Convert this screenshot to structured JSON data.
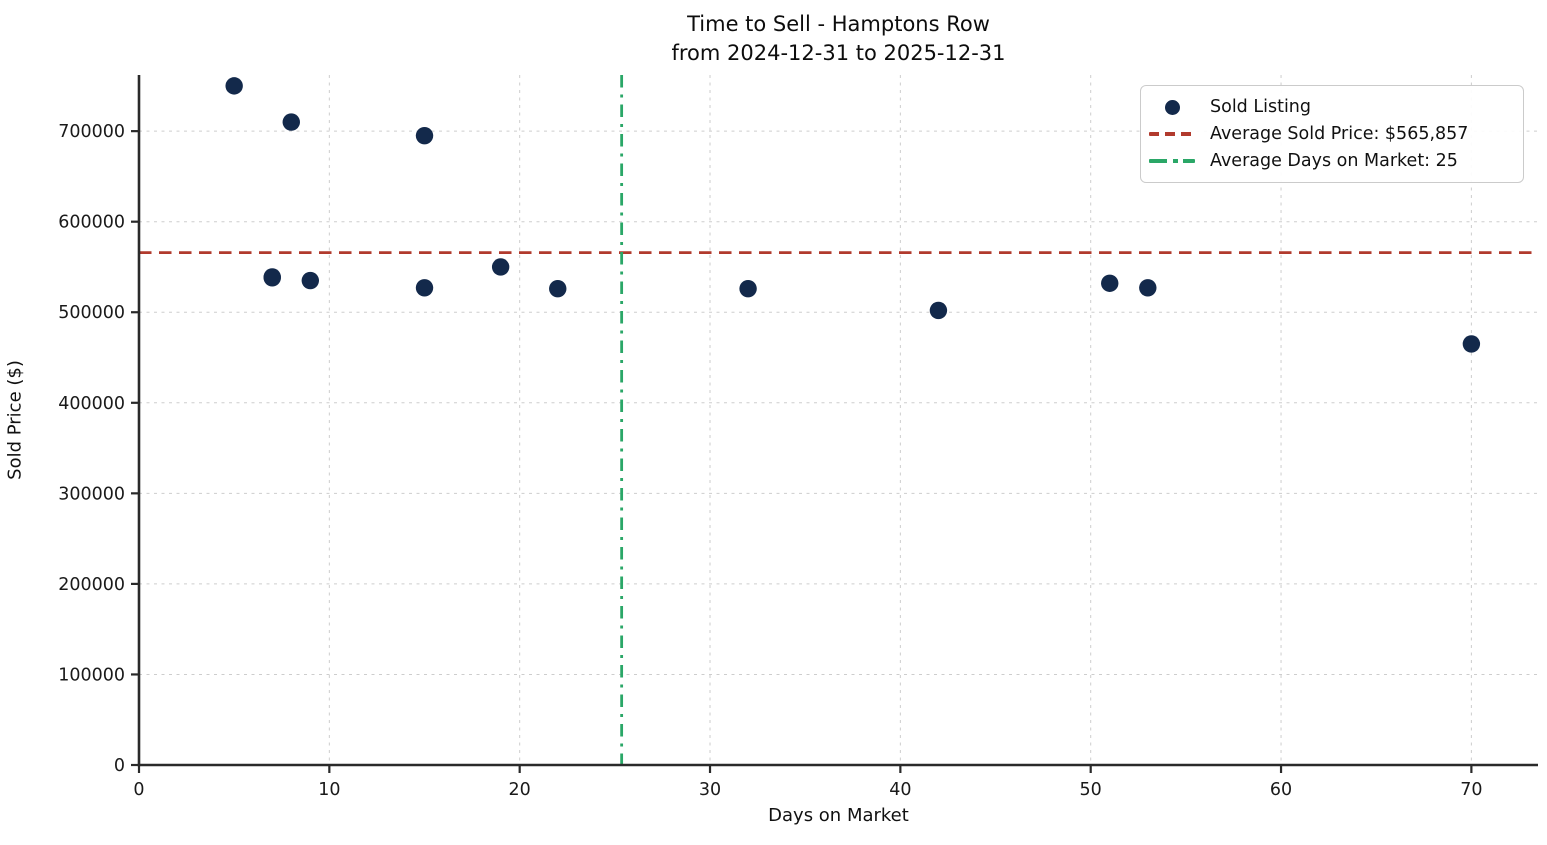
{
  "title": {
    "line1": "Time to Sell - Hamptons Row",
    "line2": "from 2024-12-31 to 2025-12-31"
  },
  "axes": {
    "xlabel": "Days on Market",
    "ylabel": "Sold Price ($)"
  },
  "legend": {
    "items": [
      {
        "marker": "dot",
        "label": "Sold Listing"
      },
      {
        "marker": "dashed-line",
        "label": "Average Sold Price: $565,857"
      },
      {
        "marker": "dashdot-line",
        "label": "Average Days on Market: 25"
      }
    ]
  },
  "chart_data": {
    "type": "scatter",
    "title": "Time to Sell - Hamptons Row\nfrom 2024-12-31 to 2025-12-31",
    "xlabel": "Days on Market",
    "ylabel": "Sold Price ($)",
    "series": [
      {
        "name": "Sold Listing",
        "points": [
          {
            "days_on_market": 5,
            "sold_price": 750000
          },
          {
            "days_on_market": 7,
            "sold_price": 539000
          },
          {
            "days_on_market": 7,
            "sold_price": 538000
          },
          {
            "days_on_market": 8,
            "sold_price": 710000
          },
          {
            "days_on_market": 9,
            "sold_price": 535000
          },
          {
            "days_on_market": 15,
            "sold_price": 695000
          },
          {
            "days_on_market": 15,
            "sold_price": 527000
          },
          {
            "days_on_market": 19,
            "sold_price": 550000
          },
          {
            "days_on_market": 22,
            "sold_price": 526000
          },
          {
            "days_on_market": 32,
            "sold_price": 526000
          },
          {
            "days_on_market": 42,
            "sold_price": 502000
          },
          {
            "days_on_market": 51,
            "sold_price": 532000
          },
          {
            "days_on_market": 53,
            "sold_price": 527000
          },
          {
            "days_on_market": 70,
            "sold_price": 465000
          }
        ]
      }
    ],
    "reference_lines": {
      "average_sold_price": 565857,
      "average_days_on_market": 25
    },
    "xlim": [
      0,
      73.5
    ],
    "ylim": [
      0,
      762000
    ],
    "xticks": [
      0,
      10,
      20,
      30,
      40,
      50,
      60,
      70
    ],
    "yticks": [
      0,
      100000,
      200000,
      300000,
      400000,
      500000,
      600000,
      700000
    ],
    "grid": true,
    "legend_position": "upper right",
    "colors": {
      "marker": "#13294B",
      "avg_price_line": "#B13A2D",
      "avg_days_line": "#2AA767",
      "grid": "#cdcdcd",
      "spine": "#2a2a2a",
      "text": "#1a1a1a"
    }
  }
}
